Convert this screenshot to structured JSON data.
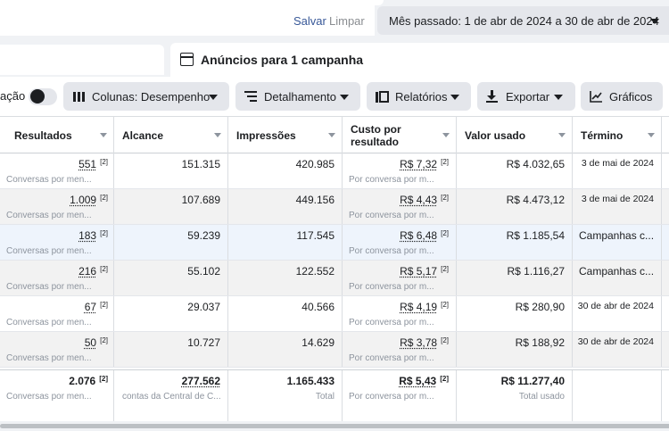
{
  "header": {
    "save": "Salvar",
    "clear": "Limpar",
    "date_range": "Mês passado: 1 de abr de 2024 a 30 de abr de 2024"
  },
  "panel": {
    "title": "Anúncios para 1 campanha"
  },
  "toolbar": {
    "toggle_label": "ação",
    "columns": "Colunas: Desempenho",
    "breakdown": "Detalhamento",
    "reports": "Relatórios",
    "export": "Exportar",
    "charts": "Gráficos"
  },
  "table": {
    "columns": [
      "Resultados",
      "Alcance",
      "Impressões",
      "Custo por resultado",
      "Valor usado",
      "Término"
    ],
    "rows": [
      {
        "results": "551",
        "results_sub": "Conversas por men...",
        "reach": "151.315",
        "impressions": "420.985",
        "cost": "R$ 7,32",
        "cost_sub": "Por conversa por m...",
        "spent": "R$ 4.032,65",
        "end": "3 de mai de 2024"
      },
      {
        "results": "1.009",
        "results_sub": "Conversas por men...",
        "reach": "107.689",
        "impressions": "449.156",
        "cost": "R$ 4,43",
        "cost_sub": "Por conversa por m...",
        "spent": "R$ 4.473,12",
        "end": "3 de mai de 2024"
      },
      {
        "results": "183",
        "results_sub": "Conversas por men...",
        "reach": "59.239",
        "impressions": "117.545",
        "cost": "R$ 6,48",
        "cost_sub": "Por conversa por m...",
        "spent": "R$ 1.185,54",
        "end": "Campanhas c..."
      },
      {
        "results": "216",
        "results_sub": "Conversas por men...",
        "reach": "55.102",
        "impressions": "122.552",
        "cost": "R$ 5,17",
        "cost_sub": "Por conversa por m...",
        "spent": "R$ 1.116,27",
        "end": "Campanhas c..."
      },
      {
        "results": "67",
        "results_sub": "Conversas por men...",
        "reach": "29.037",
        "impressions": "40.566",
        "cost": "R$ 4,19",
        "cost_sub": "Por conversa por m...",
        "spent": "R$ 280,90",
        "end": "30 de abr de 2024"
      },
      {
        "results": "50",
        "results_sub": "Conversas por men...",
        "reach": "10.727",
        "impressions": "14.629",
        "cost": "R$ 3,78",
        "cost_sub": "Por conversa por m...",
        "spent": "R$ 188,92",
        "end": "30 de abr de 2024"
      }
    ],
    "total": {
      "results": "2.076",
      "results_sub": "Conversas por men...",
      "reach": "277.562",
      "reach_sub": "contas da Central de C...",
      "impressions": "1.165.433",
      "impressions_sub": "Total",
      "cost": "R$ 5,43",
      "cost_sub": "Por conversa por m...",
      "spent": "R$ 11.277,40",
      "spent_sub": "Total usado"
    },
    "sup": "[2]"
  }
}
